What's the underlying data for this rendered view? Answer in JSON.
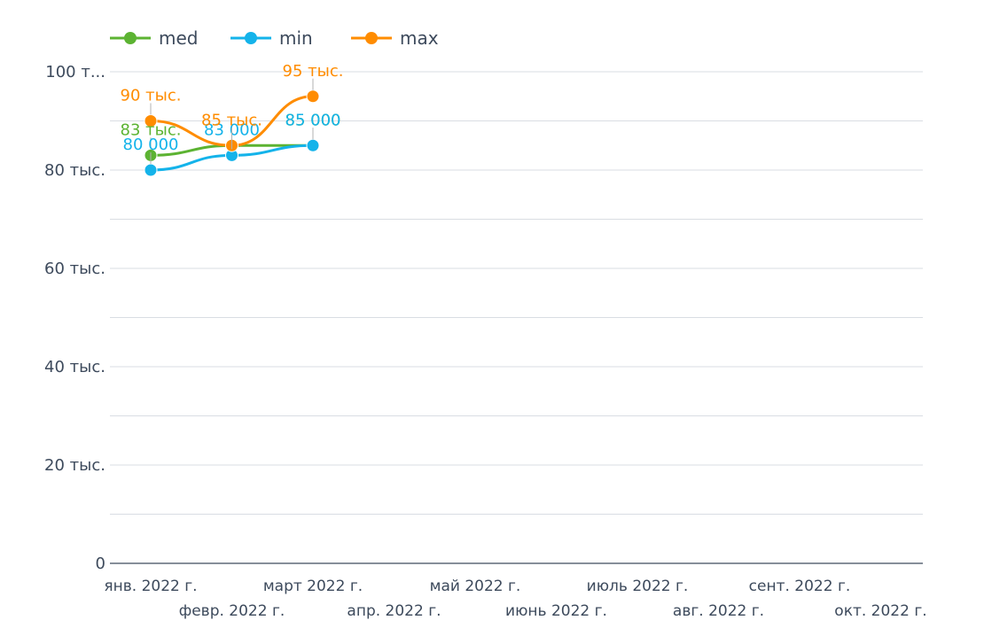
{
  "chart_data": {
    "type": "line",
    "x_labels": [
      "янв. 2022 г.",
      "февр. 2022 г.",
      "март 2022 г.",
      "апр. 2022 г.",
      "май 2022 г.",
      "июнь 2022 г.",
      "июль 2022 г.",
      "авг. 2022 г.",
      "сент. 2022 г.",
      "окт. 2022 г."
    ],
    "y_ticks": [
      {
        "value": 0,
        "label": "0"
      },
      {
        "value": 20000,
        "label": "20 тыс."
      },
      {
        "value": 40000,
        "label": "40 тыс."
      },
      {
        "value": 60000,
        "label": "60 тыс."
      },
      {
        "value": 80000,
        "label": "80 тыс."
      },
      {
        "value": 100000,
        "label": "100 т..."
      }
    ],
    "ylim": [
      0,
      100000
    ],
    "grid": true,
    "legend_position": "top-left",
    "series": [
      {
        "name": "med",
        "color": "#5cb332",
        "values": [
          83000,
          85000,
          85000
        ],
        "labels": [
          "83 тыс.",
          "",
          "85 000"
        ]
      },
      {
        "name": "min",
        "color": "#14b3ea",
        "values": [
          80000,
          83000,
          85000
        ],
        "labels": [
          "80 000",
          "83 000",
          "85 000"
        ]
      },
      {
        "name": "max",
        "color": "#ff8c00",
        "values": [
          90000,
          85000,
          95000
        ],
        "labels": [
          "90 тыс.",
          "85 тыс.",
          "95 тыс."
        ]
      }
    ]
  }
}
